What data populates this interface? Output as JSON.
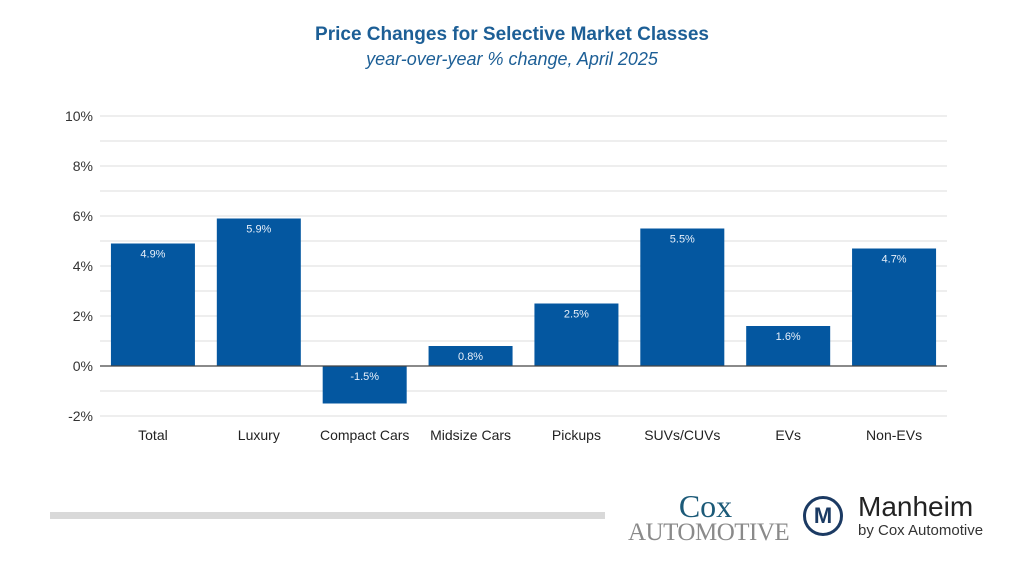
{
  "chart_data": {
    "type": "bar",
    "title": "Price Changes for Selective Market Classes",
    "subtitle": "year-over-year % change, April 2025",
    "categories": [
      "Total",
      "Luxury",
      "Compact Cars",
      "Midsize Cars",
      "Pickups",
      "SUVs/CUVs",
      "EVs",
      "Non-EVs"
    ],
    "values": [
      4.9,
      5.9,
      -1.5,
      0.8,
      2.5,
      5.5,
      1.6,
      4.7
    ],
    "data_labels": [
      "4.9%",
      "5.9%",
      "-1.5%",
      "0.8%",
      "2.5%",
      "5.5%",
      "1.6%",
      "4.7%"
    ],
    "ylim": [
      -2,
      10
    ],
    "yticks": [
      -2,
      0,
      2,
      4,
      6,
      8,
      10
    ],
    "ytick_labels": [
      "-2%",
      "0%",
      "2%",
      "4%",
      "6%",
      "8%",
      "10%"
    ],
    "grid": true,
    "legend": "none",
    "bar_color": "#0457a0",
    "xlabel": "",
    "ylabel": ""
  },
  "logos": {
    "cox_top": "Cox",
    "cox_bottom": "AUTOMOTIVE",
    "manheim_mark": "M",
    "manheim_name": "Manheim",
    "manheim_sub": "by Cox Automotive"
  }
}
